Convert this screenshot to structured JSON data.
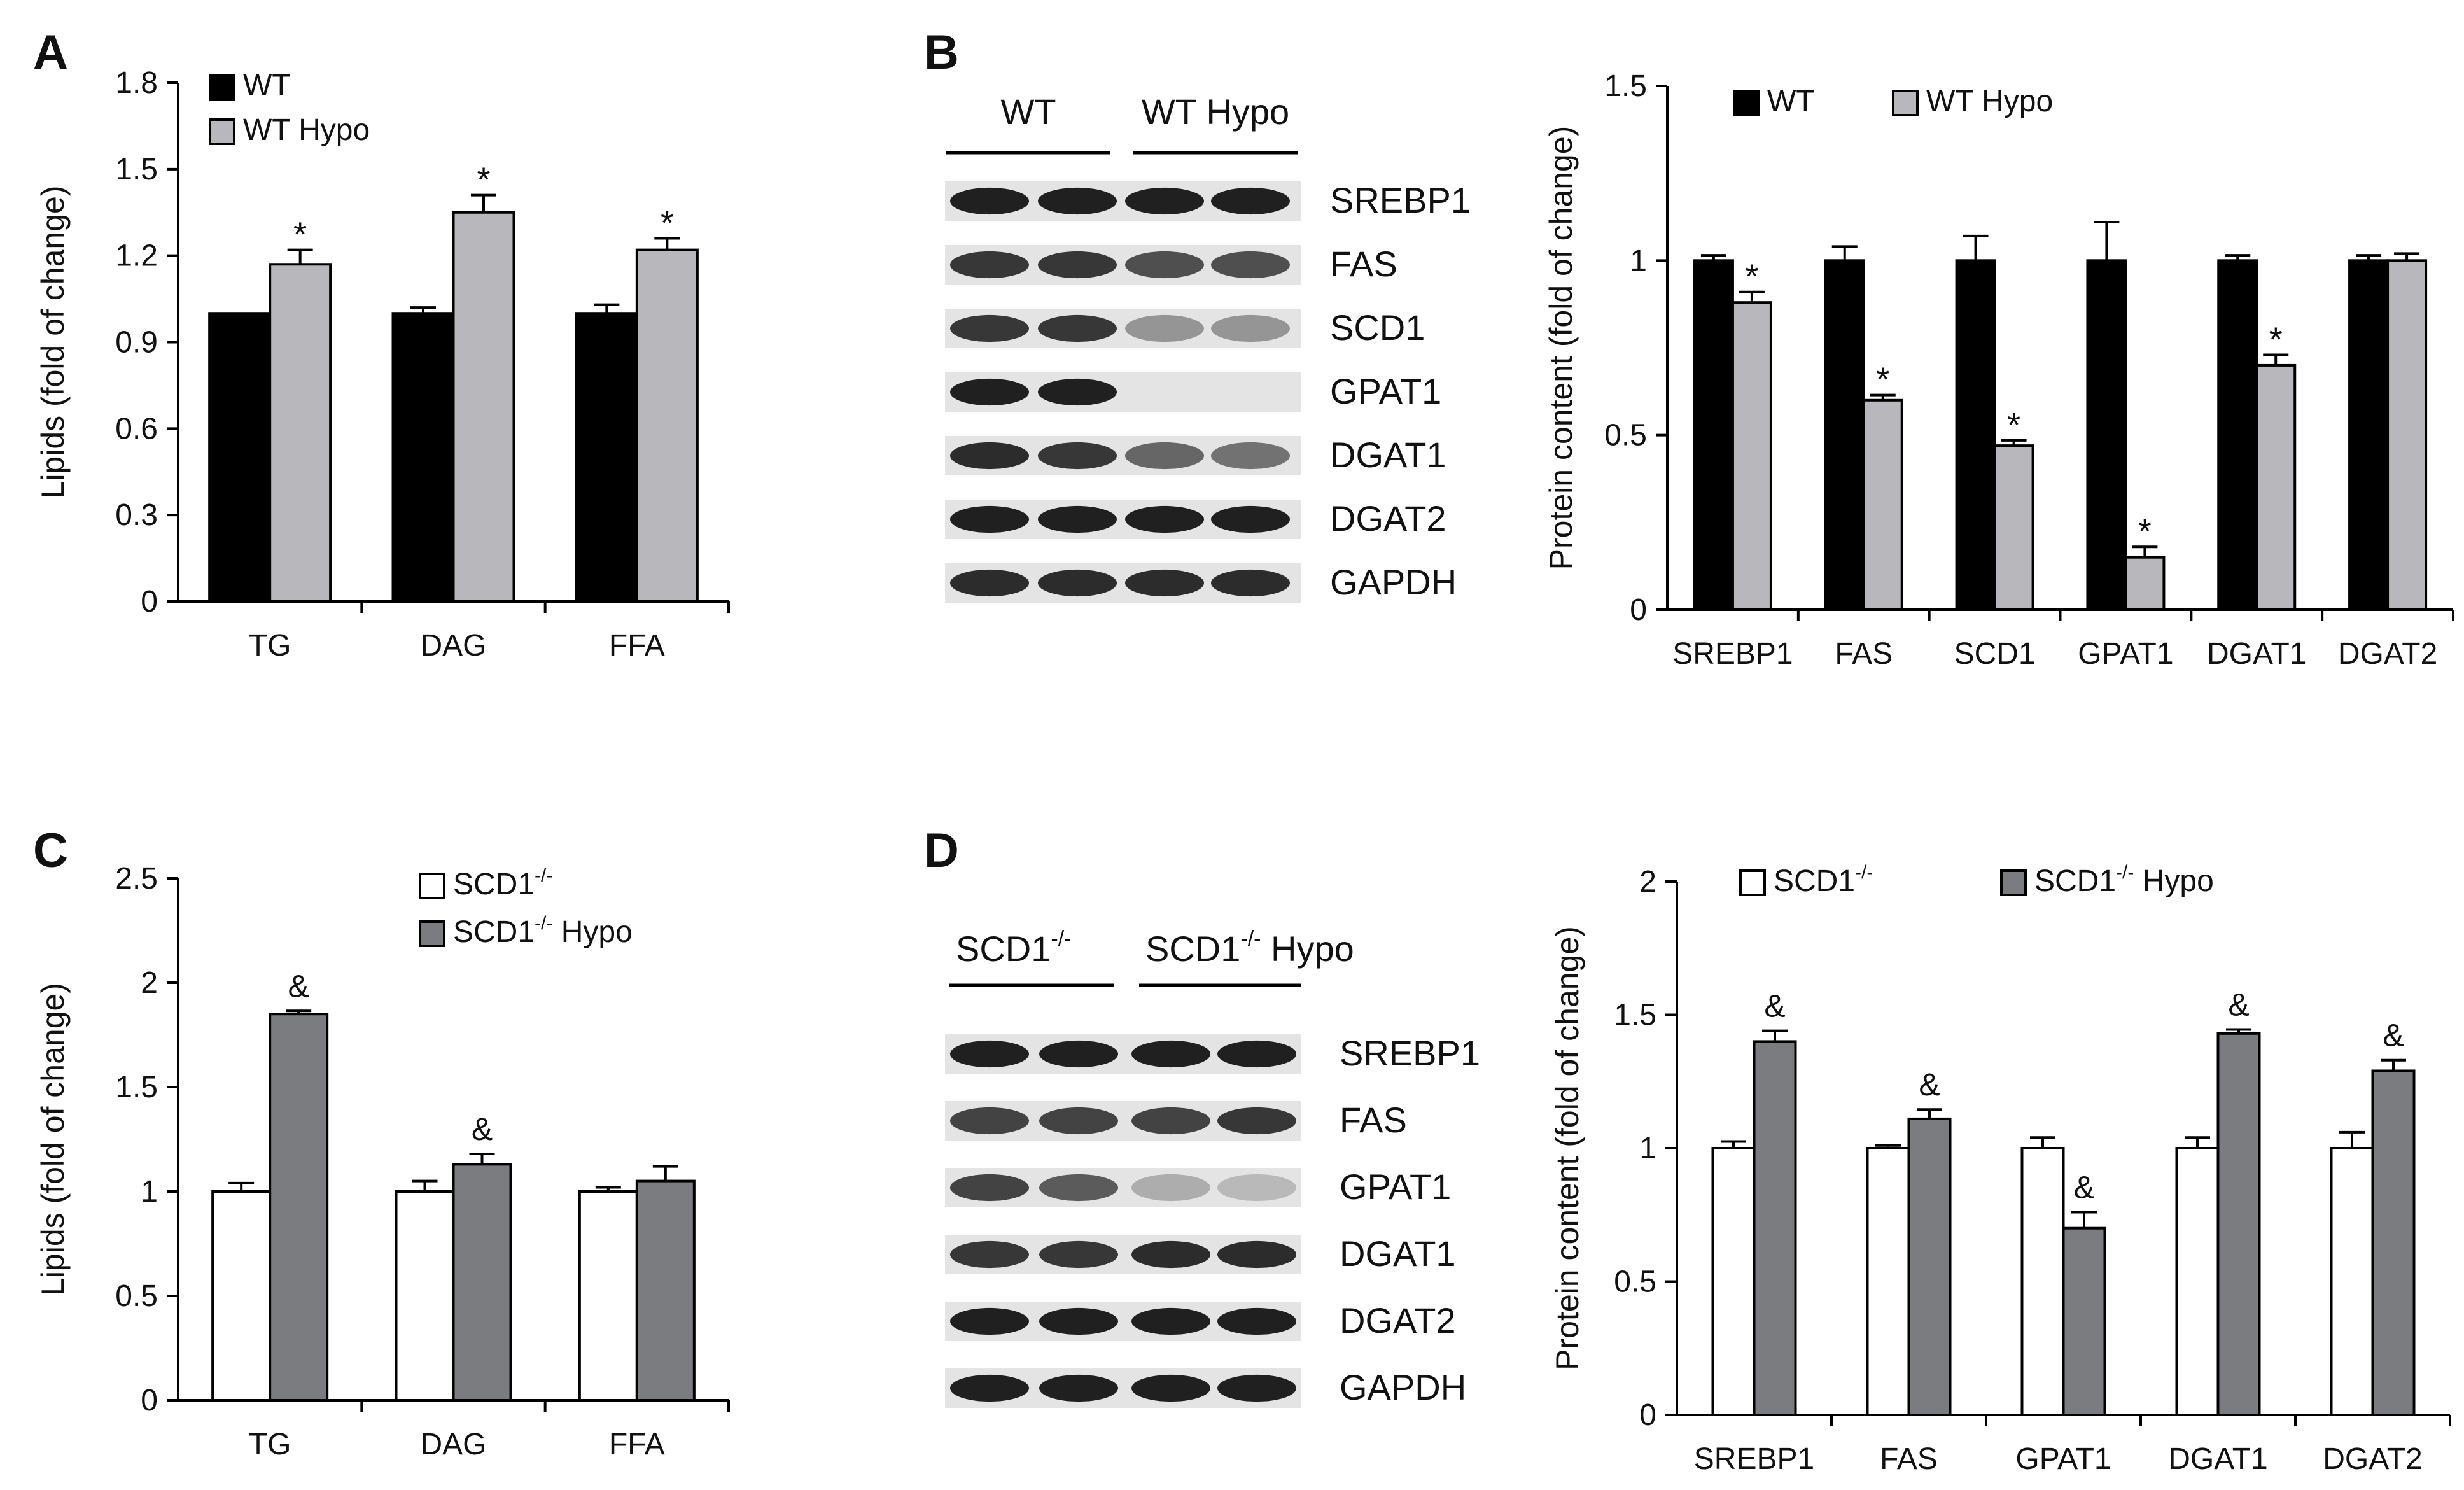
{
  "panels": {
    "A": {
      "letter": "A"
    },
    "B": {
      "letter": "B"
    },
    "C": {
      "letter": "C"
    },
    "D": {
      "letter": "D"
    }
  },
  "blots": {
    "B": {
      "group_labels": [
        "WT",
        "WT Hypo"
      ],
      "bands": [
        "SREBP1",
        "FAS",
        "SCD1",
        "GPAT1",
        "DGAT1",
        "DGAT2",
        "GAPDH"
      ],
      "intensity": [
        [
          0.95,
          0.95,
          0.95,
          0.95
        ],
        [
          0.85,
          0.85,
          0.75,
          0.75
        ],
        [
          0.85,
          0.85,
          0.45,
          0.45
        ],
        [
          0.95,
          0.95,
          0.0,
          0.0
        ],
        [
          0.9,
          0.85,
          0.65,
          0.6
        ],
        [
          0.95,
          0.95,
          0.95,
          0.95
        ],
        [
          0.9,
          0.9,
          0.9,
          0.9
        ]
      ]
    },
    "D": {
      "group_labels": [
        "SCD1",
        "SCD1",
        " Hypo"
      ],
      "group_sup": [
        "-/-",
        "-/-"
      ],
      "bands": [
        "SREBP1",
        "FAS",
        "GPAT1",
        "DGAT1",
        "DGAT2",
        "GAPDH"
      ],
      "intensity": [
        [
          0.95,
          0.95,
          0.95,
          0.95
        ],
        [
          0.8,
          0.8,
          0.8,
          0.85
        ],
        [
          0.8,
          0.7,
          0.35,
          0.3
        ],
        [
          0.85,
          0.85,
          0.9,
          0.9
        ],
        [
          0.95,
          0.95,
          0.95,
          0.95
        ],
        [
          0.95,
          0.95,
          0.95,
          0.95
        ]
      ]
    }
  },
  "chart_data": [
    {
      "id": "A",
      "type": "bar",
      "ylabel": "Lipids (fold of change)",
      "categories": [
        "TG",
        "DAG",
        "FFA"
      ],
      "ylim": [
        0,
        1.8
      ],
      "yticks": [
        "0",
        "0.3",
        "0.6",
        "0.9",
        "1.2",
        "1.5",
        "1.8"
      ],
      "legend": {
        "position": "top-left",
        "entries": [
          "WT",
          "WT Hypo"
        ]
      },
      "series": [
        {
          "name": "WT",
          "color": "#000000",
          "values": [
            1.0,
            1.0,
            1.0
          ],
          "errors": [
            0,
            0.02,
            0.03
          ],
          "marks": [
            "",
            "",
            ""
          ]
        },
        {
          "name": "WT Hypo",
          "color": "#b8b8bc",
          "values": [
            1.17,
            1.35,
            1.22
          ],
          "errors": [
            0.05,
            0.06,
            0.04
          ],
          "marks": [
            "*",
            "*",
            "*"
          ]
        }
      ]
    },
    {
      "id": "B",
      "type": "bar",
      "ylabel": "Protein content (fold of change)",
      "categories": [
        "SREBP1",
        "FAS",
        "SCD1",
        "GPAT1",
        "DGAT1",
        "DGAT2"
      ],
      "ylim": [
        0,
        1.5
      ],
      "yticks": [
        "0",
        "0.5",
        "1",
        "1.5"
      ],
      "legend": {
        "position": "top",
        "entries": [
          "WT",
          "WT Hypo"
        ]
      },
      "series": [
        {
          "name": "WT",
          "color": "#000000",
          "values": [
            1.0,
            1.0,
            1.0,
            1.0,
            1.0,
            1.0
          ],
          "errors": [
            0.015,
            0.04,
            0.07,
            0.11,
            0.015,
            0.015
          ],
          "marks": [
            "",
            "",
            "",
            "",
            "",
            ""
          ]
        },
        {
          "name": "WT Hypo",
          "color": "#b8b8bc",
          "values": [
            0.88,
            0.6,
            0.47,
            0.15,
            0.7,
            1.0
          ],
          "errors": [
            0.03,
            0.015,
            0.015,
            0.03,
            0.03,
            0.02
          ],
          "marks": [
            "*",
            "*",
            "*",
            "*",
            "*",
            ""
          ]
        }
      ]
    },
    {
      "id": "C",
      "type": "bar",
      "ylabel": "Lipids (fold of change)",
      "categories": [
        "TG",
        "DAG",
        "FFA"
      ],
      "ylim": [
        0,
        2.5
      ],
      "yticks": [
        "0",
        "0.5",
        "1",
        "1.5",
        "2",
        "2.5"
      ],
      "legend": {
        "position": "top-right",
        "entries": [
          "SCD1",
          "SCD1"
        ],
        "suffixes": [
          "",
          " Hypo"
        ],
        "sup": "-/-"
      },
      "series": [
        {
          "name": "SCD1",
          "color": "#ffffff",
          "values": [
            1.0,
            1.0,
            1.0
          ],
          "errors": [
            0.04,
            0.05,
            0.02
          ],
          "marks": [
            "",
            "",
            ""
          ]
        },
        {
          "name": "SCD1 Hypo",
          "color": "#7b7c80",
          "values": [
            1.85,
            1.13,
            1.05
          ],
          "errors": [
            0.015,
            0.05,
            0.07
          ],
          "marks": [
            "&",
            "&",
            ""
          ]
        }
      ]
    },
    {
      "id": "D",
      "type": "bar",
      "ylabel": "Protein content (fold of change)",
      "categories": [
        "SREBP1",
        "FAS",
        "GPAT1",
        "DGAT1",
        "DGAT2"
      ],
      "ylim": [
        0,
        2
      ],
      "yticks": [
        "0",
        "0.5",
        "1",
        "1.5",
        "2"
      ],
      "legend": {
        "position": "top",
        "entries": [
          "SCD1",
          "SCD1"
        ],
        "suffixes": [
          "",
          " Hypo"
        ],
        "sup": "-/-"
      },
      "series": [
        {
          "name": "SCD1",
          "color": "#ffffff",
          "values": [
            1.0,
            1.0,
            1.0,
            1.0,
            1.0
          ],
          "errors": [
            0.025,
            0.01,
            0.04,
            0.04,
            0.06
          ],
          "marks": [
            "",
            "",
            "",
            "",
            ""
          ]
        },
        {
          "name": "SCD1 Hypo",
          "color": "#7b7c80",
          "values": [
            1.4,
            1.11,
            0.7,
            1.43,
            1.29
          ],
          "errors": [
            0.04,
            0.035,
            0.06,
            0.015,
            0.04
          ],
          "marks": [
            "&",
            "&",
            "&",
            "&",
            "&"
          ]
        }
      ]
    }
  ]
}
